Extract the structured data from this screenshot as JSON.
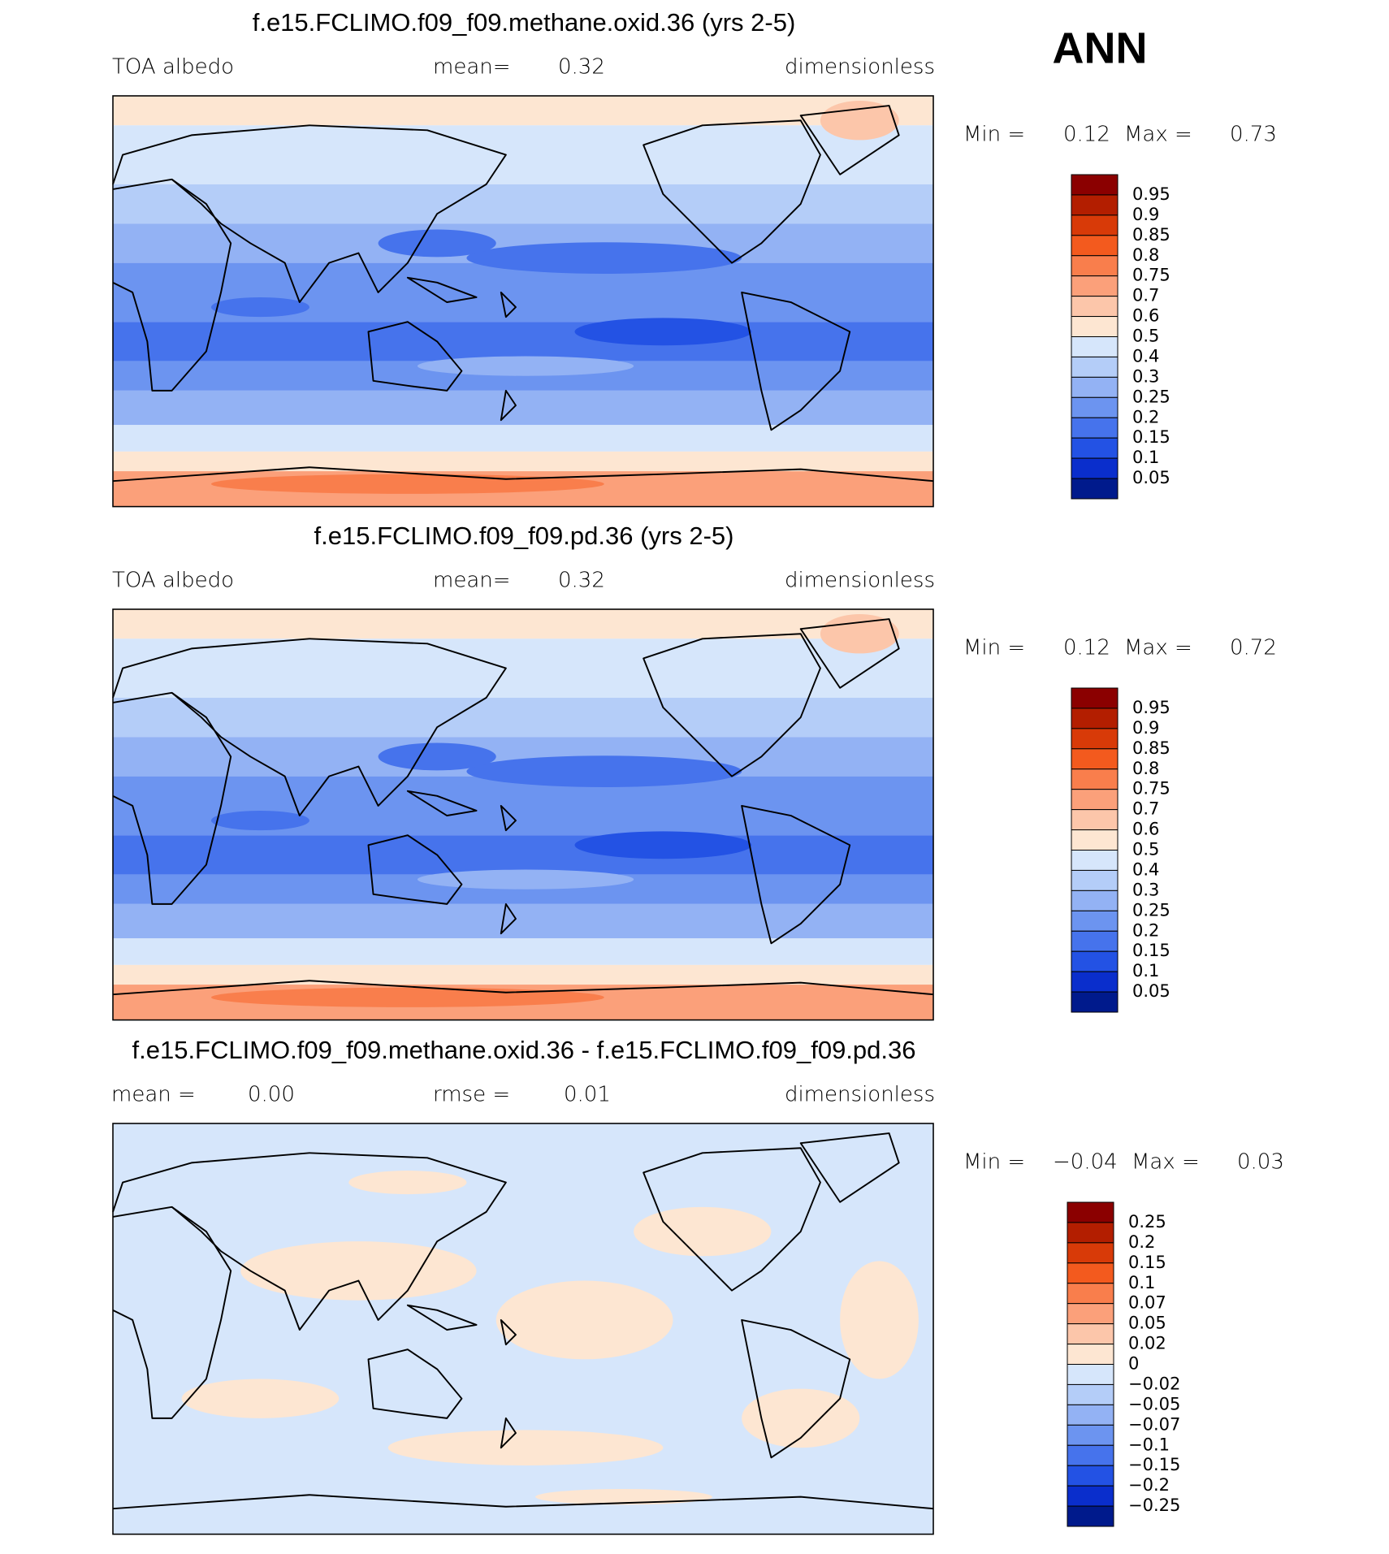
{
  "header": {
    "season": "ANN"
  },
  "panels": [
    {
      "title": "f.e15.FCLIMO.f09_f09.methane.oxid.36 (yrs 2-5)",
      "left_text": "TOA albedo",
      "mid_label": "mean=",
      "mid_value": "0.32",
      "units": "dimensionless",
      "min_label": "Min =",
      "min_value": "0.12",
      "max_label": "Max =",
      "max_value": "0.73",
      "colorbar": {
        "labels": [
          "0.95",
          "0.9",
          "0.85",
          "0.8",
          "0.75",
          "0.7",
          "0.6",
          "0.5",
          "0.4",
          "0.3",
          "0.25",
          "0.2",
          "0.15",
          "0.1",
          "0.05"
        ],
        "colors": [
          "#8b0000",
          "#b31e00",
          "#d83a08",
          "#f35a1e",
          "#f97e4c",
          "#fba07a",
          "#fcc6aa",
          "#fde6d2",
          "#d6e6fb",
          "#b4cdf8",
          "#93b2f4",
          "#6c94f0",
          "#4673ec",
          "#2352e4",
          "#0a2ecc",
          "#001a8c"
        ]
      },
      "style": "albedo"
    },
    {
      "title": "f.e15.FCLIMO.f09_f09.pd.36 (yrs 2-5)",
      "left_text": "TOA albedo",
      "mid_label": "mean=",
      "mid_value": "0.32",
      "units": "dimensionless",
      "min_label": "Min =",
      "min_value": "0.12",
      "max_label": "Max =",
      "max_value": "0.72",
      "colorbar": {
        "labels": [
          "0.95",
          "0.9",
          "0.85",
          "0.8",
          "0.75",
          "0.7",
          "0.6",
          "0.5",
          "0.4",
          "0.3",
          "0.25",
          "0.2",
          "0.15",
          "0.1",
          "0.05"
        ],
        "colors": [
          "#8b0000",
          "#b31e00",
          "#d83a08",
          "#f35a1e",
          "#f97e4c",
          "#fba07a",
          "#fcc6aa",
          "#fde6d2",
          "#d6e6fb",
          "#b4cdf8",
          "#93b2f4",
          "#6c94f0",
          "#4673ec",
          "#2352e4",
          "#0a2ecc",
          "#001a8c"
        ]
      },
      "style": "albedo"
    },
    {
      "title": "f.e15.FCLIMO.f09_f09.methane.oxid.36 - f.e15.FCLIMO.f09_f09.pd.36",
      "left_label": "mean =",
      "left_value": "0.00",
      "mid_label": "rmse =",
      "mid_value": "0.01",
      "units": "dimensionless",
      "min_label": "Min =",
      "min_value": "−0.04",
      "max_label": "Max =",
      "max_value": "0.03",
      "colorbar": {
        "labels": [
          "0.25",
          "0.2",
          "0.15",
          "0.1",
          "0.07",
          "0.05",
          "0.02",
          "0",
          "−0.02",
          "−0.05",
          "−0.07",
          "−0.1",
          "−0.15",
          "−0.2",
          "−0.25"
        ],
        "colors": [
          "#8b0000",
          "#b31e00",
          "#d83a08",
          "#f35a1e",
          "#f97e4c",
          "#fba07a",
          "#fcc6aa",
          "#fde6d2",
          "#d6e6fb",
          "#b4cdf8",
          "#93b2f4",
          "#6c94f0",
          "#4673ec",
          "#2352e4",
          "#0a2ecc",
          "#001a8c"
        ]
      },
      "style": "diff"
    }
  ]
}
